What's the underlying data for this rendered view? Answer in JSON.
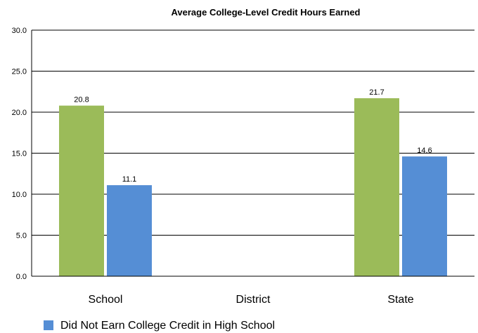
{
  "chart_data": {
    "type": "bar",
    "title": "Average College-Level Credit Hours Earned",
    "categories": [
      "School",
      "District",
      "State"
    ],
    "ylim": [
      0,
      30
    ],
    "yticks": [
      "0.0",
      "5.0",
      "10.0",
      "15.0",
      "20.0",
      "25.0",
      "30.0"
    ],
    "grid": true,
    "legend_position": "bottom",
    "series": [
      {
        "color": "#9bbb59",
        "values": [
          20.8,
          null,
          21.7
        ],
        "labels": [
          "20.8",
          "",
          "21.7"
        ]
      },
      {
        "name": "Did Not Earn College Credit in High School",
        "color": "#558ed5",
        "values": [
          11.1,
          null,
          14.6
        ],
        "labels": [
          "11.1",
          "",
          "14.6"
        ]
      }
    ]
  }
}
